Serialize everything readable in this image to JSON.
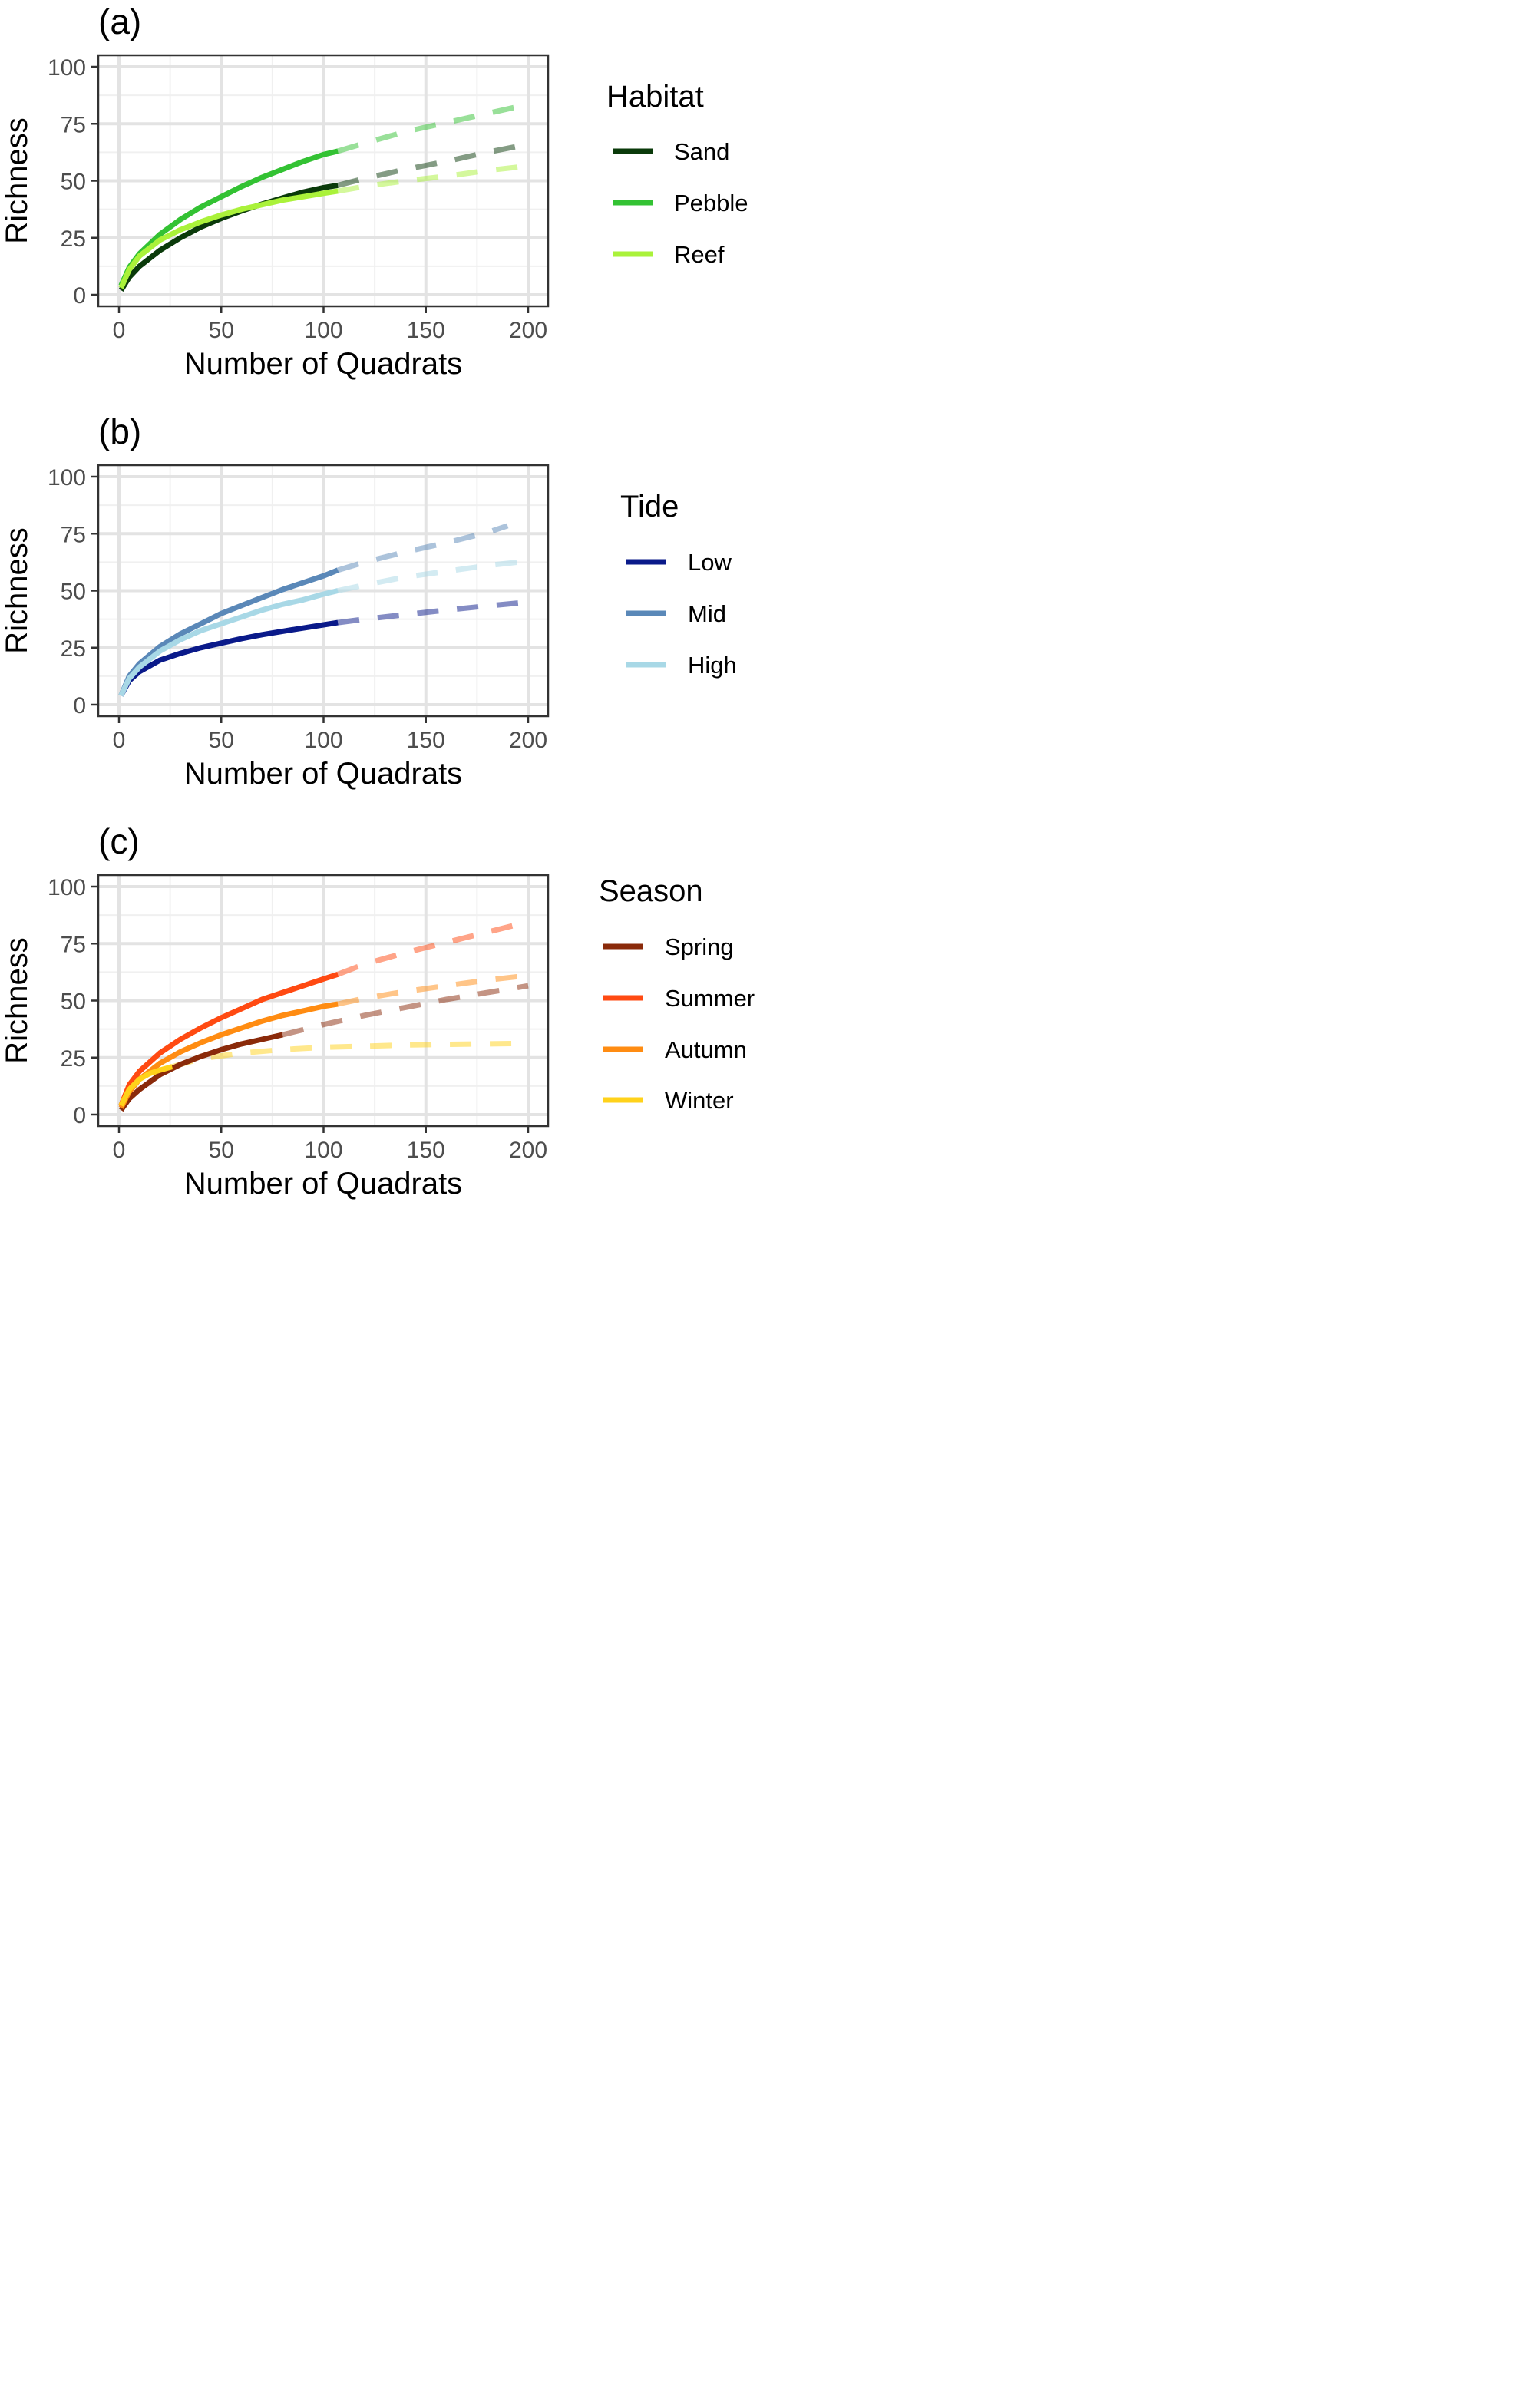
{
  "chart_data": [
    {
      "panel_label": "(a)",
      "type": "line",
      "xlabel": "Number of Quadrats",
      "ylabel": "Richness",
      "xlim": [
        0,
        200
      ],
      "ylim": [
        0,
        100
      ],
      "xticks": [
        0,
        50,
        100,
        150,
        200
      ],
      "yticks": [
        0,
        25,
        50,
        75,
        100
      ],
      "legend_title": "Habitat",
      "legend_position": "right",
      "grid": true,
      "series": [
        {
          "name": "Sand",
          "color": "#0a3a0a",
          "interpolated": {
            "x": [
              1,
              5,
              10,
              20,
              30,
              40,
              50,
              60,
              70,
              80,
              90,
              100,
              107
            ],
            "y": [
              2,
              7.7,
              12.5,
              19.5,
              25,
              29.7,
              33.5,
              36.8,
              39.8,
              42.5,
              45,
              47,
              48
            ]
          },
          "extrapolated": {
            "x": [
              107,
              120,
              140,
              160,
              180,
              200
            ],
            "y": [
              48,
              51,
              55,
              58.5,
              62.5,
              66
            ]
          }
        },
        {
          "name": "Pebble",
          "color": "#33c233",
          "interpolated": {
            "x": [
              1,
              5,
              10,
              20,
              30,
              40,
              50,
              60,
              70,
              80,
              90,
              100,
              107
            ],
            "y": [
              4,
              12,
              18,
              26.5,
              33,
              38.5,
              43,
              47.5,
              51.5,
              55,
              58.5,
              61.5,
              63
            ]
          },
          "extrapolated": {
            "x": [
              107,
              120,
              140,
              160,
              180,
              200
            ],
            "y": [
              63,
              66.5,
              71.5,
              75.5,
              79.5,
              83.5
            ]
          }
        },
        {
          "name": "Reef",
          "color": "#aaf23a",
          "interpolated": {
            "x": [
              1,
              5,
              10,
              20,
              30,
              40,
              50,
              60,
              70,
              80,
              90,
              100,
              107
            ],
            "y": [
              3,
              11,
              17,
              24,
              28.5,
              32,
              35,
              37.5,
              39.5,
              41.5,
              43,
              44.5,
              45.5
            ]
          },
          "extrapolated": {
            "x": [
              107,
              120,
              140,
              160,
              180,
              200
            ],
            "y": [
              45.5,
              47.5,
              50,
              52,
              54.5,
              56.5
            ]
          }
        }
      ]
    },
    {
      "panel_label": "(b)",
      "type": "line",
      "xlabel": "Number of Quadrats",
      "ylabel": "Richness",
      "xlim": [
        0,
        200
      ],
      "ylim": [
        0,
        100
      ],
      "xticks": [
        0,
        50,
        100,
        150,
        200
      ],
      "yticks": [
        0,
        25,
        50,
        75,
        100
      ],
      "legend_title": "Tide",
      "legend_position": "right",
      "grid": true,
      "series": [
        {
          "name": "Low",
          "color": "#0a1a8a",
          "interpolated": {
            "x": [
              1,
              5,
              10,
              20,
              30,
              40,
              50,
              60,
              70,
              80,
              90,
              100,
              107
            ],
            "y": [
              4,
              10.5,
              14.5,
              19.5,
              22.5,
              25,
              27,
              29,
              30.7,
              32.2,
              33.6,
              35,
              36
            ]
          },
          "extrapolated": {
            "x": [
              107,
              120,
              140,
              160,
              180,
              200
            ],
            "y": [
              36,
              37.5,
              39.5,
              41.5,
              43.3,
              45
            ]
          }
        },
        {
          "name": "Mid",
          "color": "#5a88b8",
          "interpolated": {
            "x": [
              1,
              5,
              10,
              20,
              30,
              40,
              50,
              60,
              70,
              80,
              90,
              100,
              107
            ],
            "y": [
              4,
              12.5,
              18,
              25.5,
              31,
              35.5,
              40,
              43.5,
              47,
              50.5,
              53.5,
              56.5,
              59
            ]
          },
          "extrapolated": {
            "x": [
              107,
              120,
              140,
              160,
              180,
              190
            ],
            "y": [
              59,
              62.5,
              67,
              71,
              75.5,
              78.5
            ]
          }
        },
        {
          "name": "High",
          "color": "#a8d8e6",
          "interpolated": {
            "x": [
              1,
              5,
              10,
              20,
              30,
              40,
              50,
              60,
              70,
              80,
              90,
              100,
              107
            ],
            "y": [
              4,
              11.5,
              16.5,
              23.5,
              28.5,
              32.5,
              35.5,
              38.5,
              41.5,
              44,
              46,
              48.5,
              50
            ]
          },
          "extrapolated": {
            "x": [
              107,
              120,
              140,
              160,
              180,
              200
            ],
            "y": [
              50,
              52.5,
              56,
              58.5,
              61,
              63
            ]
          }
        }
      ]
    },
    {
      "panel_label": "(c)",
      "type": "line",
      "xlabel": "Number of Quadrats",
      "ylabel": "Richness",
      "xlim": [
        0,
        200
      ],
      "ylim": [
        0,
        100
      ],
      "xticks": [
        0,
        50,
        100,
        150,
        200
      ],
      "yticks": [
        0,
        25,
        50,
        75,
        100
      ],
      "legend_title": "Season",
      "legend_position": "right",
      "grid": true,
      "series": [
        {
          "name": "Spring",
          "color": "#8a2a0a",
          "interpolated": {
            "x": [
              1,
              5,
              10,
              20,
              30,
              40,
              50,
              60,
              70,
              80
            ],
            "y": [
              2,
              7,
              11,
              17.5,
              22,
              25.5,
              28.5,
              31,
              33,
              35
            ]
          },
          "extrapolated": {
            "x": [
              80,
              100,
              120,
              140,
              160,
              180,
              200
            ],
            "y": [
              35,
              39.5,
              43.5,
              47,
              50.5,
              53.5,
              56.5
            ]
          }
        },
        {
          "name": "Summer",
          "color": "#ff4a12",
          "interpolated": {
            "x": [
              1,
              5,
              10,
              20,
              30,
              40,
              50,
              60,
              70,
              80,
              90,
              100,
              107
            ],
            "y": [
              4,
              13,
              19,
              27,
              33,
              38,
              42.5,
              46.5,
              50.5,
              53.5,
              56.5,
              59.5,
              61.5
            ]
          },
          "extrapolated": {
            "x": [
              107,
              120,
              140,
              160,
              180,
              200
            ],
            "y": [
              61.5,
              66,
              71,
              75.5,
              80,
              84.5
            ]
          }
        },
        {
          "name": "Autumn",
          "color": "#ff8c12",
          "interpolated": {
            "x": [
              1,
              5,
              10,
              20,
              30,
              40,
              50,
              60,
              70,
              80,
              90,
              100,
              107
            ],
            "y": [
              3,
              10,
              15.5,
              22.5,
              27.5,
              31.5,
              35,
              38,
              41,
              43.5,
              45.5,
              47.5,
              48.5
            ]
          },
          "extrapolated": {
            "x": [
              107,
              120,
              140,
              160,
              180,
              200
            ],
            "y": [
              48.5,
              51,
              54,
              56.5,
              59,
              61
            ]
          }
        },
        {
          "name": "Winter",
          "color": "#ffd21a",
          "interpolated": {
            "x": [
              1,
              5,
              10,
              15,
              20,
              26
            ],
            "y": [
              4,
              11,
              15.5,
              18,
              19.5,
              21
            ]
          },
          "extrapolated": {
            "x": [
              26,
              40,
              60,
              80,
              100,
              120,
              140,
              160,
              180,
              200
            ],
            "y": [
              21,
              24.5,
              27,
              28.5,
              29.5,
              30,
              30.5,
              30.8,
              31,
              31.2
            ]
          }
        }
      ]
    }
  ]
}
